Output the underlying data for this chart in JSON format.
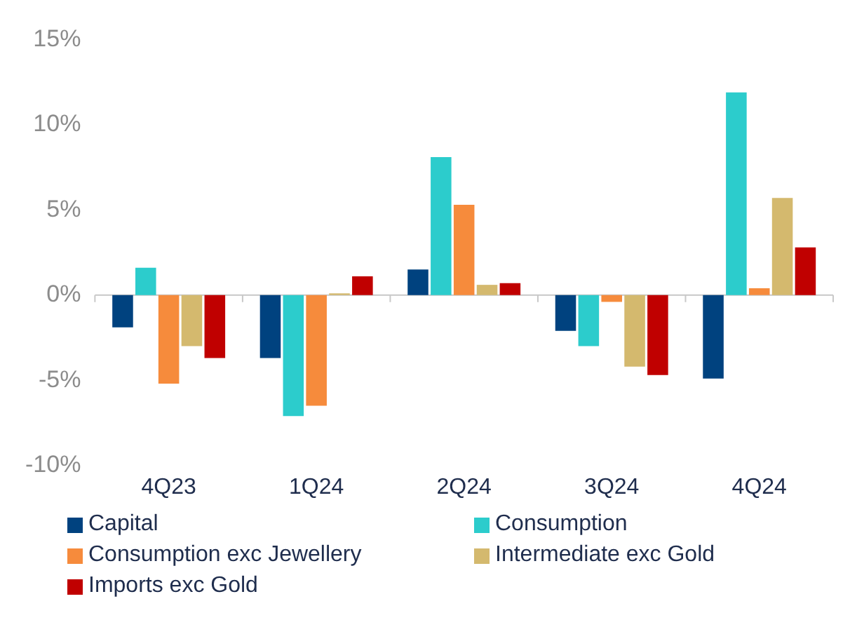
{
  "chart_data": {
    "type": "bar",
    "categories": [
      "4Q23",
      "1Q24",
      "2Q24",
      "3Q24",
      "4Q24"
    ],
    "series": [
      {
        "name": "Capital",
        "color": "#00427f",
        "values": [
          -1.9,
          -3.7,
          1.5,
          -2.1,
          -4.9
        ]
      },
      {
        "name": "Consumption",
        "color": "#2ccccc",
        "values": [
          1.6,
          -7.1,
          8.1,
          -3.0,
          11.9
        ]
      },
      {
        "name": "Consumption exc Jewellery",
        "color": "#f68b3c",
        "values": [
          -5.2,
          -6.5,
          5.3,
          -0.4,
          0.4
        ]
      },
      {
        "name": "Intermediate exc Gold",
        "color": "#d4b96e",
        "values": [
          -3.0,
          0.1,
          0.6,
          -4.2,
          5.7
        ]
      },
      {
        "name": "Imports exc Gold",
        "color": "#c00000",
        "values": [
          -3.7,
          1.1,
          0.7,
          -4.7,
          2.8
        ]
      }
    ],
    "ylim": [
      -10,
      15
    ],
    "yticks": [
      {
        "value": -10,
        "label": "-10%"
      },
      {
        "value": -5,
        "label": "-5%"
      },
      {
        "value": 0,
        "label": "0%"
      },
      {
        "value": 5,
        "label": "5%"
      },
      {
        "value": 10,
        "label": "10%"
      },
      {
        "value": 15,
        "label": "15%"
      }
    ],
    "ref_lines": [
      {
        "axis": "y",
        "value": 0,
        "color": "#c8c8c8"
      }
    ],
    "grid": false,
    "legend": "bottom"
  }
}
